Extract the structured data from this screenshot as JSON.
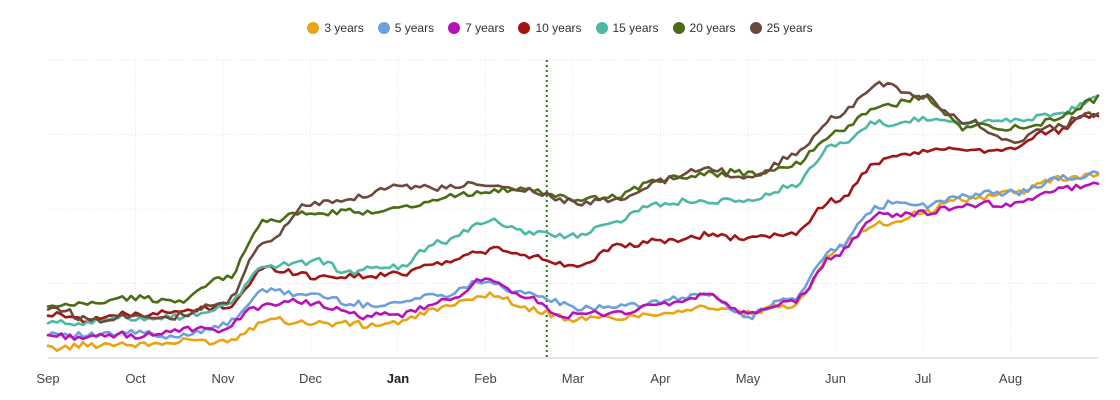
{
  "chart_data": {
    "type": "line",
    "title": "",
    "xlabel": "",
    "ylabel": "",
    "legend_position": "top-center",
    "grid": true,
    "marker_label": "",
    "x_ticks": [
      "Sep",
      "Oct",
      "Nov",
      "Dec",
      "Jan",
      "Feb",
      "Mar",
      "Apr",
      "May",
      "Jun",
      "Jul",
      "Aug"
    ],
    "x_ticks_bold": [
      "Jan"
    ],
    "vertical_marker_month": 5.7,
    "x": [
      0,
      0.5,
      1,
      1.5,
      2,
      2.5,
      3,
      3.5,
      4,
      4.5,
      5,
      5.5,
      6,
      6.5,
      7,
      7.5,
      8,
      8.5,
      9,
      9.5,
      10,
      10.5,
      11,
      11.5,
      12
    ],
    "series": [
      {
        "name": "3 years",
        "color": "#e8a317",
        "values": [
          6,
          7,
          8,
          8,
          10,
          20,
          19,
          18,
          20,
          28,
          34,
          27,
          21,
          22,
          25,
          28,
          24,
          29,
          58,
          72,
          78,
          85,
          88,
          96,
          98
        ]
      },
      {
        "name": "5 years",
        "color": "#6ca0dc",
        "values": [
          14,
          12,
          13,
          12,
          17,
          36,
          34,
          28,
          30,
          35,
          42,
          34,
          27,
          28,
          30,
          35,
          23,
          32,
          59,
          82,
          82,
          86,
          89,
          95,
          100
        ]
      },
      {
        "name": "7 years",
        "color": "#b712b7",
        "values": [
          12,
          11,
          13,
          14,
          15,
          30,
          31,
          23,
          24,
          30,
          41,
          31,
          22,
          24,
          29,
          34,
          23,
          30,
          56,
          76,
          78,
          81,
          83,
          91,
          94
        ]
      },
      {
        "name": "10 years",
        "color": "#a01515",
        "values": [
          22,
          22,
          24,
          24,
          27,
          48,
          44,
          44,
          46,
          52,
          58,
          54,
          50,
          60,
          64,
          66,
          65,
          67,
          84,
          106,
          110,
          113,
          112,
          122,
          130
        ]
      },
      {
        "name": "15 years",
        "color": "#4db8a4",
        "values": [
          18,
          19,
          21,
          22,
          26,
          50,
          52,
          46,
          50,
          62,
          74,
          68,
          66,
          74,
          82,
          84,
          86,
          92,
          114,
          126,
          128,
          126,
          128,
          130,
          140
        ]
      },
      {
        "name": "20 years",
        "color": "#4a6c12",
        "values": [
          28,
          29,
          32,
          30,
          42,
          74,
          77,
          78,
          82,
          86,
          90,
          90,
          84,
          88,
          96,
          100,
          98,
          103,
          120,
          135,
          140,
          124,
          124,
          128,
          140
        ]
      },
      {
        "name": "25 years",
        "color": "#6b4a3c",
        "values": [
          26,
          21,
          24,
          23,
          28,
          64,
          82,
          86,
          93,
          92,
          92,
          90,
          84,
          85,
          94,
          102,
          96,
          108,
          130,
          146,
          140,
          128,
          116,
          125,
          130
        ]
      }
    ]
  }
}
